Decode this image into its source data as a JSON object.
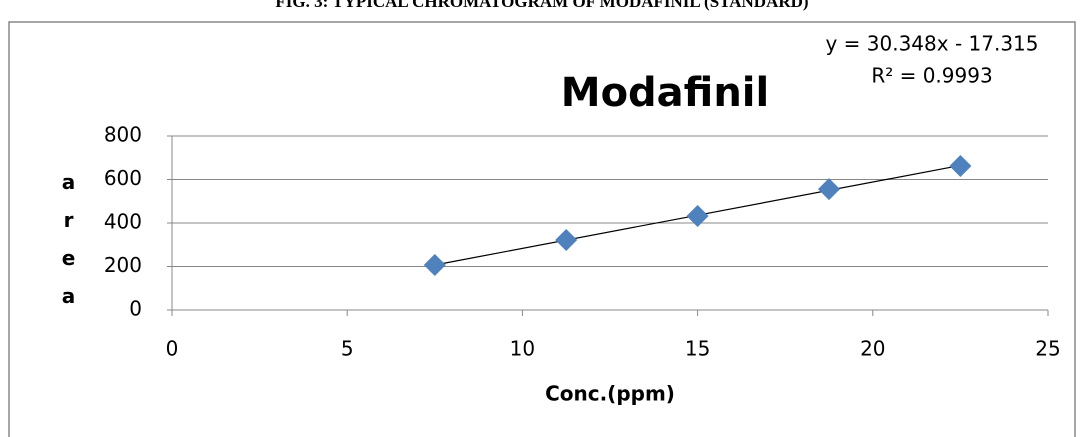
{
  "caption": "FIG. 3: TYPICAL CHROMATOGRAM OF MODAFINIL (STANDARD)",
  "chart_data": {
    "type": "scatter",
    "title": "Modafinil",
    "equation": "y = 30.348x - 17.315",
    "r_squared": "R² = 0.9993",
    "xlabel": "Conc.(ppm)",
    "ylabel": "area",
    "x": [
      7.5,
      11.25,
      15,
      18.75,
      22.5
    ],
    "values": [
      207,
      322,
      432,
      556,
      662
    ],
    "color": "#4f81bd",
    "trendline": true,
    "xlim": [
      0,
      25
    ],
    "xticks": [
      0,
      5,
      10,
      15,
      20,
      25
    ],
    "ylim": [
      0,
      800
    ],
    "yticks": [
      0,
      200,
      400,
      600,
      800
    ],
    "grid": true
  }
}
